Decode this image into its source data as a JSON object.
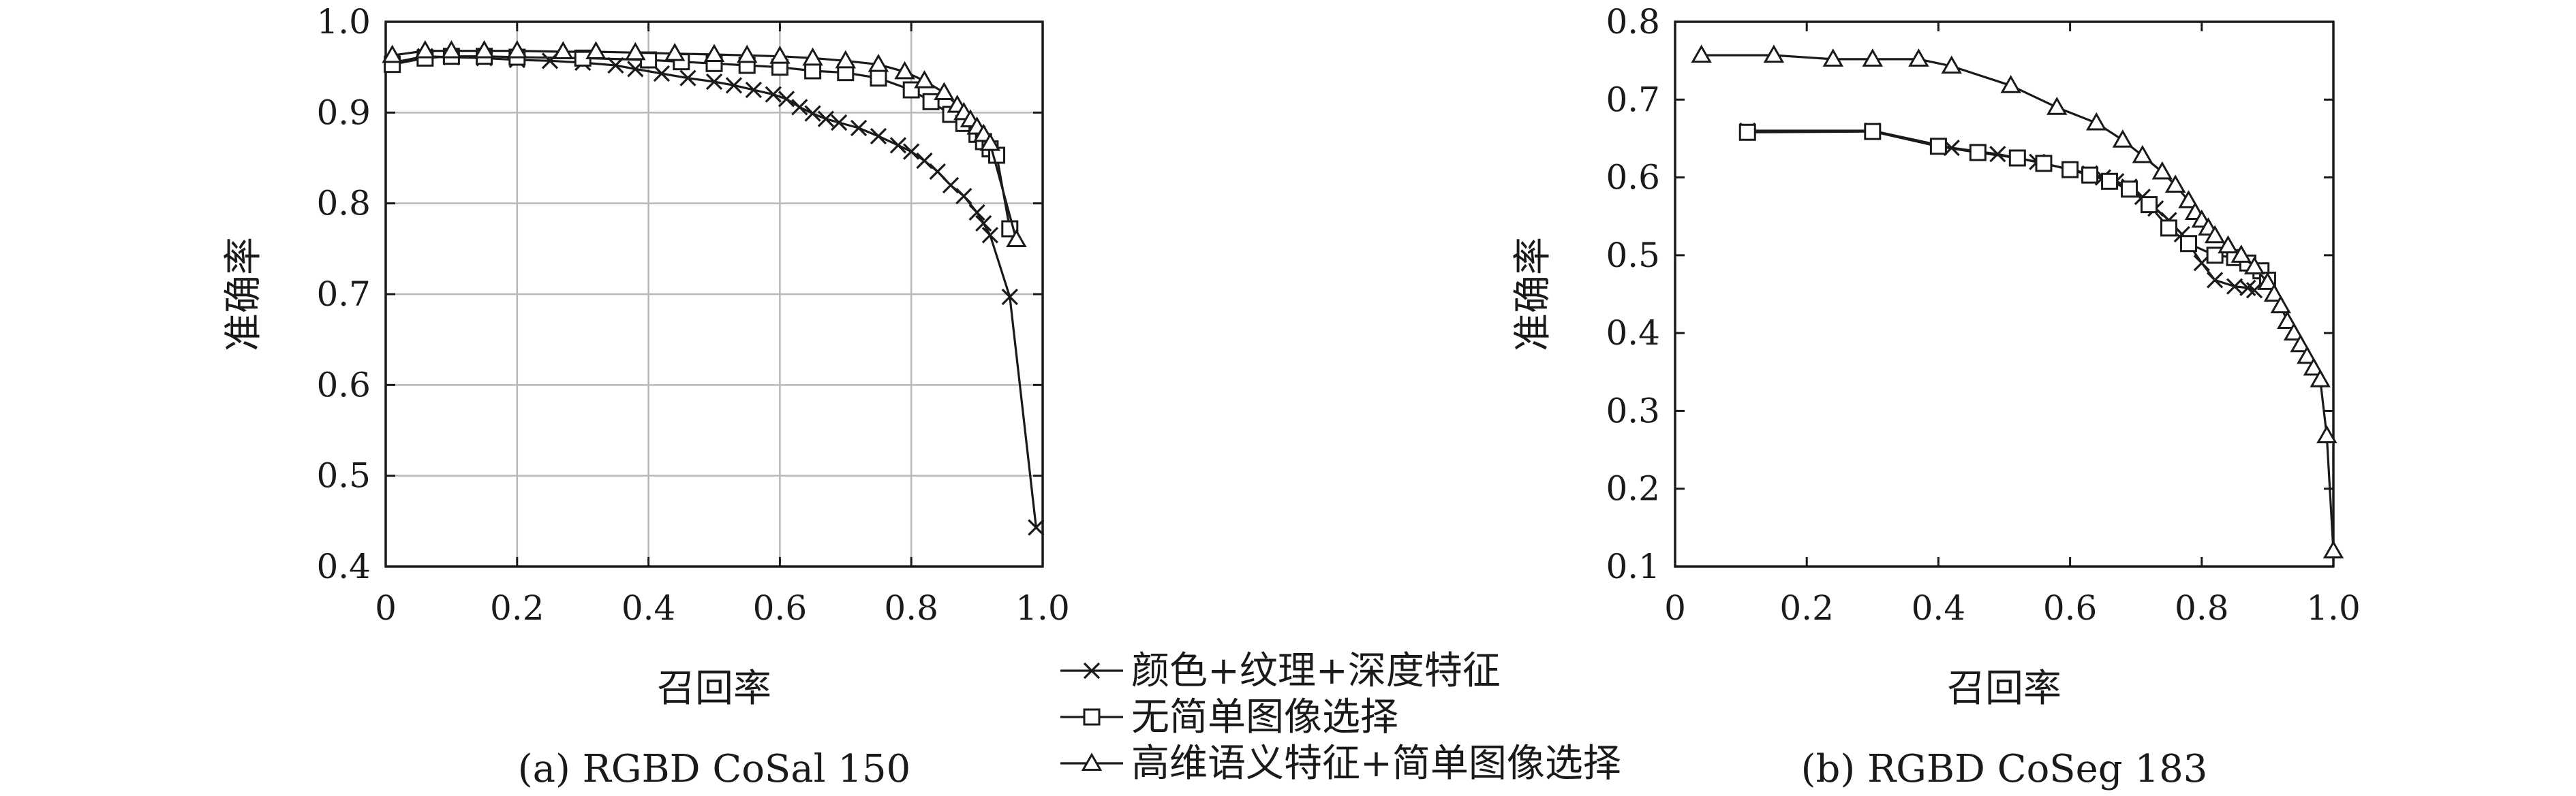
{
  "legend": {
    "items": [
      {
        "label": "颜色+纹理+深度特征",
        "marker": "cross"
      },
      {
        "label": "无简单图像选择",
        "marker": "square"
      },
      {
        "label": "高维语义特征+简单图像选择",
        "marker": "triangle"
      }
    ]
  },
  "chart_data": [
    {
      "type": "line",
      "caption": "(a) RGBD CoSal 150",
      "xlabel": "召回率",
      "ylabel": "准确率",
      "xlim": [
        0,
        1.0
      ],
      "ylim": [
        0.4,
        1.0
      ],
      "xticks": [
        0,
        0.2,
        0.4,
        0.6,
        0.8,
        1.0
      ],
      "xtick_labels": [
        "0",
        "0.2",
        "0.4",
        "0.6",
        "0.8",
        "1.0"
      ],
      "yticks": [
        0.4,
        0.5,
        0.6,
        0.7,
        0.8,
        0.9,
        1.0
      ],
      "ytick_labels": [
        "0.4",
        "0.5",
        "0.6",
        "0.7",
        "0.8",
        "0.9",
        "1.0"
      ],
      "grid": true,
      "series": [
        {
          "name": "颜色+纹理+深度特征",
          "marker": "cross",
          "points": [
            [
              0.01,
              0.955
            ],
            [
              0.06,
              0.962
            ],
            [
              0.1,
              0.961
            ],
            [
              0.15,
              0.96
            ],
            [
              0.2,
              0.958
            ],
            [
              0.25,
              0.957
            ],
            [
              0.3,
              0.955
            ],
            [
              0.35,
              0.952
            ],
            [
              0.38,
              0.948
            ],
            [
              0.42,
              0.943
            ],
            [
              0.46,
              0.938
            ],
            [
              0.5,
              0.934
            ],
            [
              0.53,
              0.93
            ],
            [
              0.56,
              0.925
            ],
            [
              0.59,
              0.92
            ],
            [
              0.61,
              0.915
            ],
            [
              0.63,
              0.906
            ],
            [
              0.65,
              0.899
            ],
            [
              0.67,
              0.893
            ],
            [
              0.69,
              0.889
            ],
            [
              0.72,
              0.883
            ],
            [
              0.75,
              0.874
            ],
            [
              0.78,
              0.864
            ],
            [
              0.8,
              0.857
            ],
            [
              0.82,
              0.847
            ],
            [
              0.84,
              0.835
            ],
            [
              0.86,
              0.82
            ],
            [
              0.88,
              0.808
            ],
            [
              0.9,
              0.79
            ],
            [
              0.91,
              0.778
            ],
            [
              0.92,
              0.765
            ],
            [
              0.95,
              0.697
            ],
            [
              0.99,
              0.443
            ]
          ]
        },
        {
          "name": "无简单图像选择",
          "marker": "square",
          "points": [
            [
              0.01,
              0.953
            ],
            [
              0.06,
              0.96
            ],
            [
              0.1,
              0.962
            ],
            [
              0.15,
              0.962
            ],
            [
              0.2,
              0.961
            ],
            [
              0.3,
              0.96
            ],
            [
              0.4,
              0.958
            ],
            [
              0.45,
              0.956
            ],
            [
              0.5,
              0.954
            ],
            [
              0.55,
              0.952
            ],
            [
              0.6,
              0.95
            ],
            [
              0.65,
              0.946
            ],
            [
              0.7,
              0.944
            ],
            [
              0.75,
              0.938
            ],
            [
              0.8,
              0.925
            ],
            [
              0.83,
              0.912
            ],
            [
              0.86,
              0.898
            ],
            [
              0.88,
              0.888
            ],
            [
              0.9,
              0.876
            ],
            [
              0.91,
              0.868
            ],
            [
              0.92,
              0.86
            ],
            [
              0.93,
              0.853
            ],
            [
              0.95,
              0.772
            ]
          ]
        },
        {
          "name": "高维语义特征+简单图像选择",
          "marker": "triangle",
          "points": [
            [
              0.01,
              0.963
            ],
            [
              0.06,
              0.968
            ],
            [
              0.1,
              0.968
            ],
            [
              0.15,
              0.968
            ],
            [
              0.2,
              0.968
            ],
            [
              0.27,
              0.967
            ],
            [
              0.32,
              0.967
            ],
            [
              0.38,
              0.966
            ],
            [
              0.44,
              0.965
            ],
            [
              0.5,
              0.964
            ],
            [
              0.55,
              0.963
            ],
            [
              0.6,
              0.962
            ],
            [
              0.65,
              0.96
            ],
            [
              0.7,
              0.957
            ],
            [
              0.75,
              0.953
            ],
            [
              0.79,
              0.945
            ],
            [
              0.82,
              0.935
            ],
            [
              0.85,
              0.922
            ],
            [
              0.87,
              0.908
            ],
            [
              0.88,
              0.9
            ],
            [
              0.89,
              0.892
            ],
            [
              0.9,
              0.884
            ],
            [
              0.91,
              0.876
            ],
            [
              0.92,
              0.866
            ],
            [
              0.96,
              0.76
            ]
          ]
        }
      ]
    },
    {
      "type": "line",
      "caption": "(b) RGBD CoSeg 183",
      "xlabel": "召回率",
      "ylabel": "准确率",
      "xlim": [
        0,
        1.0
      ],
      "ylim": [
        0.1,
        0.8
      ],
      "xticks": [
        0,
        0.2,
        0.4,
        0.6,
        0.8,
        1.0
      ],
      "xtick_labels": [
        "0",
        "0.2",
        "0.4",
        "0.6",
        "0.8",
        "1.0"
      ],
      "yticks": [
        0.1,
        0.2,
        0.3,
        0.4,
        0.5,
        0.6,
        0.7,
        0.8
      ],
      "ytick_labels": [
        "0.1",
        "0.2",
        "0.3",
        "0.4",
        "0.5",
        "0.6",
        "0.7",
        "0.8"
      ],
      "grid": false,
      "series": [
        {
          "name": "颜色+纹理+深度特征",
          "marker": "cross",
          "points": [
            [
              0.11,
              0.66
            ],
            [
              0.3,
              0.66
            ],
            [
              0.42,
              0.638
            ],
            [
              0.49,
              0.63
            ],
            [
              0.55,
              0.62
            ],
            [
              0.6,
              0.61
            ],
            [
              0.63,
              0.605
            ],
            [
              0.65,
              0.6
            ],
            [
              0.67,
              0.595
            ],
            [
              0.69,
              0.588
            ],
            [
              0.71,
              0.575
            ],
            [
              0.73,
              0.56
            ],
            [
              0.75,
              0.545
            ],
            [
              0.77,
              0.527
            ],
            [
              0.8,
              0.49
            ],
            [
              0.82,
              0.468
            ],
            [
              0.85,
              0.46
            ],
            [
              0.87,
              0.458
            ],
            [
              0.88,
              0.455
            ]
          ]
        },
        {
          "name": "无简单图像选择",
          "marker": "square",
          "points": [
            [
              0.11,
              0.658
            ],
            [
              0.3,
              0.659
            ],
            [
              0.4,
              0.64
            ],
            [
              0.46,
              0.632
            ],
            [
              0.52,
              0.625
            ],
            [
              0.56,
              0.618
            ],
            [
              0.6,
              0.61
            ],
            [
              0.63,
              0.603
            ],
            [
              0.66,
              0.595
            ],
            [
              0.69,
              0.585
            ],
            [
              0.72,
              0.565
            ],
            [
              0.75,
              0.535
            ],
            [
              0.78,
              0.515
            ],
            [
              0.82,
              0.5
            ],
            [
              0.85,
              0.497
            ],
            [
              0.87,
              0.49
            ],
            [
              0.89,
              0.48
            ],
            [
              0.9,
              0.468
            ]
          ]
        },
        {
          "name": "高维语义特征+简单图像选择",
          "marker": "triangle",
          "points": [
            [
              0.04,
              0.757
            ],
            [
              0.15,
              0.757
            ],
            [
              0.24,
              0.752
            ],
            [
              0.3,
              0.752
            ],
            [
              0.37,
              0.752
            ],
            [
              0.42,
              0.743
            ],
            [
              0.51,
              0.718
            ],
            [
              0.58,
              0.69
            ],
            [
              0.64,
              0.67
            ],
            [
              0.68,
              0.648
            ],
            [
              0.71,
              0.628
            ],
            [
              0.74,
              0.607
            ],
            [
              0.76,
              0.59
            ],
            [
              0.78,
              0.57
            ],
            [
              0.79,
              0.555
            ],
            [
              0.8,
              0.545
            ],
            [
              0.81,
              0.535
            ],
            [
              0.82,
              0.525
            ],
            [
              0.84,
              0.512
            ],
            [
              0.86,
              0.5
            ],
            [
              0.88,
              0.485
            ],
            [
              0.9,
              0.465
            ],
            [
              0.91,
              0.45
            ],
            [
              0.92,
              0.435
            ],
            [
              0.93,
              0.415
            ],
            [
              0.94,
              0.4
            ],
            [
              0.95,
              0.385
            ],
            [
              0.96,
              0.37
            ],
            [
              0.97,
              0.355
            ],
            [
              0.98,
              0.34
            ],
            [
              0.99,
              0.268
            ],
            [
              1.0,
              0.12
            ]
          ]
        }
      ]
    }
  ]
}
